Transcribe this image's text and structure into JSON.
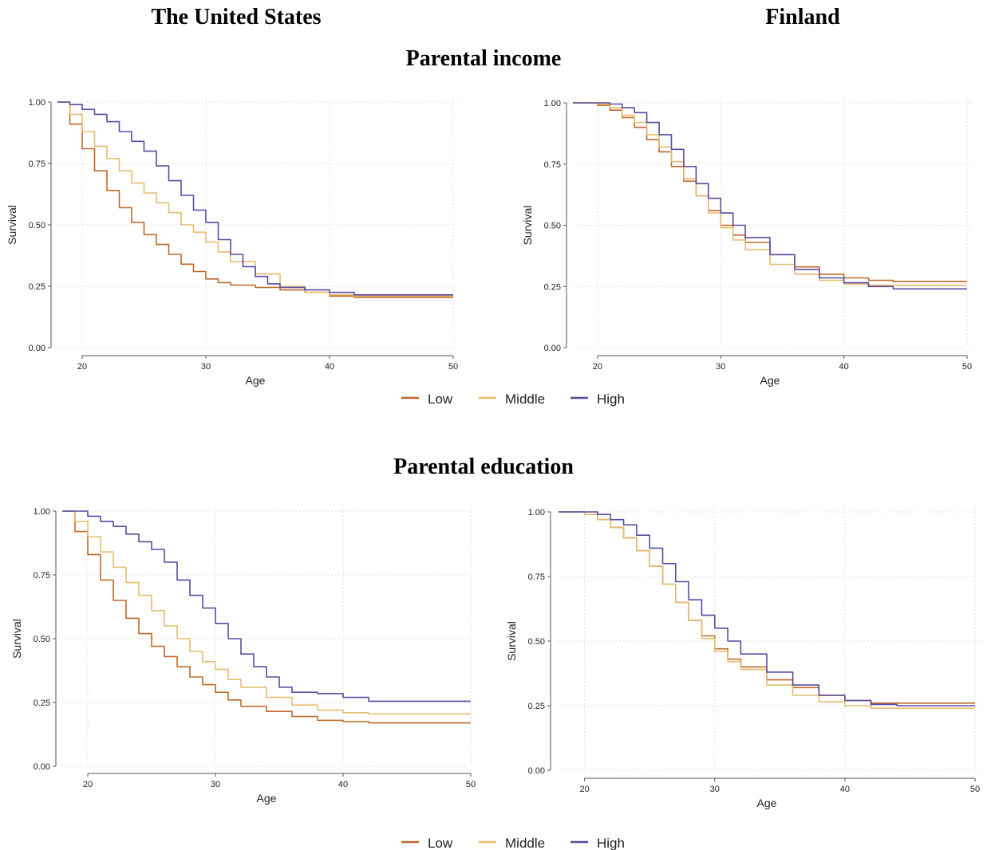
{
  "headers": {
    "left_column": "The United States",
    "right_column": "Finland",
    "section_top": "Parental income",
    "section_bottom": "Parental education"
  },
  "colors": {
    "Low": "#c0692a",
    "Middle": "#e6bd6e",
    "High": "#5b4aa3"
  },
  "legend": [
    "Low",
    "Middle",
    "High"
  ],
  "chart_data": [
    {
      "type": "line",
      "panel": "us-income",
      "xlabel": "Age",
      "ylabel": "Survival",
      "xlim": [
        18,
        50
      ],
      "ylim": [
        0,
        1
      ],
      "xticks": [
        20,
        30,
        40,
        50
      ],
      "yticks": [
        0,
        0.25,
        0.5,
        0.75,
        1
      ],
      "ytick_labels": [
        "0.00",
        "0.25",
        "0.50",
        "0.75",
        "1.00"
      ],
      "grid": true,
      "series": [
        {
          "name": "Low",
          "x": [
            18,
            19,
            20,
            21,
            22,
            23,
            24,
            25,
            26,
            27,
            28,
            29,
            30,
            31,
            32,
            34,
            36,
            38,
            40,
            42,
            44,
            50
          ],
          "y": [
            1,
            0.91,
            0.81,
            0.72,
            0.64,
            0.57,
            0.51,
            0.46,
            0.42,
            0.38,
            0.34,
            0.31,
            0.28,
            0.265,
            0.255,
            0.245,
            0.235,
            0.225,
            0.21,
            0.205,
            0.205,
            0.205
          ]
        },
        {
          "name": "Middle",
          "x": [
            18,
            19,
            20,
            21,
            22,
            23,
            24,
            25,
            26,
            27,
            28,
            29,
            30,
            31,
            32,
            34,
            36,
            38,
            40,
            42,
            44,
            50
          ],
          "y": [
            1,
            0.95,
            0.88,
            0.82,
            0.77,
            0.72,
            0.67,
            0.63,
            0.59,
            0.55,
            0.5,
            0.47,
            0.43,
            0.39,
            0.35,
            0.3,
            0.25,
            0.225,
            0.215,
            0.21,
            0.21,
            0.21
          ]
        },
        {
          "name": "High",
          "x": [
            18,
            19,
            20,
            21,
            22,
            23,
            24,
            25,
            26,
            27,
            28,
            29,
            30,
            31,
            32,
            33,
            34,
            35,
            36,
            38,
            40,
            42,
            44,
            50
          ],
          "y": [
            1,
            0.99,
            0.97,
            0.95,
            0.92,
            0.88,
            0.84,
            0.8,
            0.74,
            0.68,
            0.62,
            0.56,
            0.51,
            0.44,
            0.38,
            0.33,
            0.29,
            0.26,
            0.245,
            0.235,
            0.225,
            0.215,
            0.215,
            0.215
          ]
        }
      ]
    },
    {
      "type": "line",
      "panel": "fi-income",
      "xlabel": "Age",
      "ylabel": "Survival",
      "xlim": [
        18,
        50
      ],
      "ylim": [
        0,
        1
      ],
      "xticks": [
        20,
        30,
        40,
        50
      ],
      "yticks": [
        0,
        0.25,
        0.5,
        0.75,
        1
      ],
      "ytick_labels": [
        "0.00",
        "0.25",
        "0.50",
        "0.75",
        "1.00"
      ],
      "grid": true,
      "series": [
        {
          "name": "Low",
          "x": [
            18,
            20,
            21,
            22,
            23,
            24,
            25,
            26,
            27,
            28,
            29,
            30,
            31,
            32,
            34,
            36,
            38,
            40,
            42,
            44,
            46,
            50
          ],
          "y": [
            1,
            0.99,
            0.97,
            0.94,
            0.9,
            0.85,
            0.8,
            0.74,
            0.68,
            0.62,
            0.56,
            0.5,
            0.46,
            0.43,
            0.38,
            0.33,
            0.3,
            0.285,
            0.275,
            0.27,
            0.27,
            0.27
          ]
        },
        {
          "name": "Middle",
          "x": [
            18,
            20,
            21,
            22,
            23,
            24,
            25,
            26,
            27,
            28,
            29,
            30,
            31,
            32,
            34,
            36,
            38,
            40,
            42,
            44,
            46,
            50
          ],
          "y": [
            1,
            0.995,
            0.98,
            0.95,
            0.92,
            0.87,
            0.82,
            0.76,
            0.69,
            0.62,
            0.55,
            0.49,
            0.44,
            0.4,
            0.34,
            0.3,
            0.275,
            0.26,
            0.255,
            0.255,
            0.255,
            0.255
          ]
        },
        {
          "name": "High",
          "x": [
            18,
            20,
            21,
            22,
            23,
            24,
            25,
            26,
            27,
            28,
            29,
            30,
            31,
            32,
            34,
            36,
            38,
            40,
            42,
            44,
            46,
            50
          ],
          "y": [
            1,
            1,
            0.995,
            0.98,
            0.96,
            0.92,
            0.87,
            0.81,
            0.74,
            0.67,
            0.61,
            0.55,
            0.5,
            0.45,
            0.38,
            0.32,
            0.285,
            0.265,
            0.25,
            0.24,
            0.24,
            0.24
          ]
        }
      ]
    },
    {
      "type": "line",
      "panel": "us-education",
      "xlabel": "Age",
      "ylabel": "Survival",
      "xlim": [
        18,
        50
      ],
      "ylim": [
        0,
        1
      ],
      "xticks": [
        20,
        30,
        40,
        50
      ],
      "yticks": [
        0,
        0.25,
        0.5,
        0.75,
        1
      ],
      "ytick_labels": [
        "0.00",
        "0.25",
        "0.50",
        "0.75",
        "1.00"
      ],
      "grid": true,
      "series": [
        {
          "name": "Low",
          "x": [
            18,
            19,
            20,
            21,
            22,
            23,
            24,
            25,
            26,
            27,
            28,
            29,
            30,
            31,
            32,
            34,
            36,
            38,
            40,
            42,
            44,
            50
          ],
          "y": [
            1,
            0.92,
            0.83,
            0.73,
            0.65,
            0.58,
            0.52,
            0.47,
            0.43,
            0.39,
            0.35,
            0.32,
            0.29,
            0.26,
            0.235,
            0.215,
            0.195,
            0.18,
            0.175,
            0.17,
            0.17,
            0.17
          ]
        },
        {
          "name": "Middle",
          "x": [
            18,
            19,
            20,
            21,
            22,
            23,
            24,
            25,
            26,
            27,
            28,
            29,
            30,
            31,
            32,
            34,
            36,
            38,
            40,
            42,
            44,
            50
          ],
          "y": [
            1,
            0.96,
            0.9,
            0.84,
            0.78,
            0.72,
            0.67,
            0.61,
            0.55,
            0.5,
            0.45,
            0.41,
            0.38,
            0.34,
            0.31,
            0.27,
            0.24,
            0.22,
            0.21,
            0.205,
            0.205,
            0.205
          ]
        },
        {
          "name": "High",
          "x": [
            18,
            19,
            20,
            21,
            22,
            23,
            24,
            25,
            26,
            27,
            28,
            29,
            30,
            31,
            32,
            33,
            34,
            35,
            36,
            38,
            40,
            42,
            44,
            50
          ],
          "y": [
            1,
            1,
            0.98,
            0.96,
            0.94,
            0.91,
            0.88,
            0.85,
            0.8,
            0.73,
            0.67,
            0.62,
            0.56,
            0.5,
            0.44,
            0.39,
            0.35,
            0.31,
            0.29,
            0.285,
            0.27,
            0.255,
            0.255,
            0.255
          ]
        }
      ]
    },
    {
      "type": "line",
      "panel": "fi-education",
      "xlabel": "Age",
      "ylabel": "Survival",
      "xlim": [
        18,
        50
      ],
      "ylim": [
        0,
        1
      ],
      "xticks": [
        20,
        30,
        40,
        50
      ],
      "yticks": [
        0,
        0.25,
        0.5,
        0.75,
        1
      ],
      "ytick_labels": [
        "0.00",
        "0.25",
        "0.50",
        "0.75",
        "1.00"
      ],
      "grid": true,
      "series": [
        {
          "name": "Low",
          "x": [
            18,
            20,
            21,
            22,
            23,
            24,
            25,
            26,
            27,
            28,
            29,
            30,
            31,
            32,
            34,
            36,
            38,
            40,
            42,
            44,
            46,
            50
          ],
          "y": [
            1,
            0.99,
            0.97,
            0.94,
            0.9,
            0.85,
            0.79,
            0.72,
            0.65,
            0.58,
            0.52,
            0.47,
            0.43,
            0.4,
            0.35,
            0.32,
            0.29,
            0.27,
            0.26,
            0.26,
            0.26,
            0.26
          ]
        },
        {
          "name": "Middle",
          "x": [
            18,
            20,
            21,
            22,
            23,
            24,
            25,
            26,
            27,
            28,
            29,
            30,
            31,
            32,
            34,
            36,
            38,
            40,
            42,
            44,
            46,
            50
          ],
          "y": [
            1,
            0.99,
            0.97,
            0.94,
            0.9,
            0.85,
            0.79,
            0.72,
            0.65,
            0.58,
            0.51,
            0.46,
            0.42,
            0.39,
            0.33,
            0.29,
            0.265,
            0.25,
            0.24,
            0.24,
            0.24,
            0.24
          ]
        },
        {
          "name": "High",
          "x": [
            18,
            20,
            21,
            22,
            23,
            24,
            25,
            26,
            27,
            28,
            29,
            30,
            31,
            32,
            34,
            36,
            38,
            40,
            42,
            44,
            46,
            50
          ],
          "y": [
            1,
            1,
            0.99,
            0.97,
            0.95,
            0.91,
            0.86,
            0.8,
            0.73,
            0.66,
            0.6,
            0.55,
            0.5,
            0.45,
            0.38,
            0.33,
            0.29,
            0.27,
            0.255,
            0.25,
            0.25,
            0.25
          ]
        }
      ]
    }
  ]
}
